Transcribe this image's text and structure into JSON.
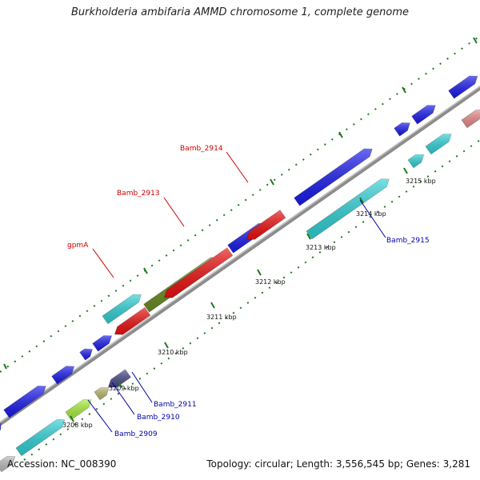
{
  "header": {
    "title": "Burkholderia ambifaria AMMD chromosome 1, complete genome"
  },
  "footer": {
    "accession": "Accession: NC_008390",
    "summary": "Topology: circular; Length: 3,556,545 bp; Genes: 3,281"
  },
  "ticks": [
    {
      "label": "3208 kbp"
    },
    {
      "label": "3209 kbp"
    },
    {
      "label": "3210 kbp"
    },
    {
      "label": "3211 kbp"
    },
    {
      "label": "3212 kbp"
    },
    {
      "label": "3213 kbp"
    },
    {
      "label": "3214 kbp"
    },
    {
      "label": "3215 kbp"
    }
  ],
  "genes": [
    {
      "label": "Bamb_2914",
      "color": "#cc0000"
    },
    {
      "label": "Bamb_2913",
      "color": "#cc0000"
    },
    {
      "label": "gpmA",
      "color": "#cc0000"
    },
    {
      "label": "Bamb_2915",
      "color": "#0000aa"
    },
    {
      "label": "Bamb_2911",
      "color": "#0000aa"
    },
    {
      "label": "Bamb_2910",
      "color": "#0000aa"
    },
    {
      "label": "Bamb_2909",
      "color": "#0000aa"
    }
  ],
  "colors": {
    "backbone": "#8c8c8c",
    "blue": "#1a1aee",
    "cyan": "#2fd2d6",
    "red": "#ee1111",
    "olive": "#6b8e23",
    "lime": "#a8ee3a",
    "khaki": "#b8b870",
    "slate": "#4b4a8c",
    "grey": "#bdbdbd",
    "pink": "#e98a8a",
    "tick_green": "#1e7a1e"
  }
}
